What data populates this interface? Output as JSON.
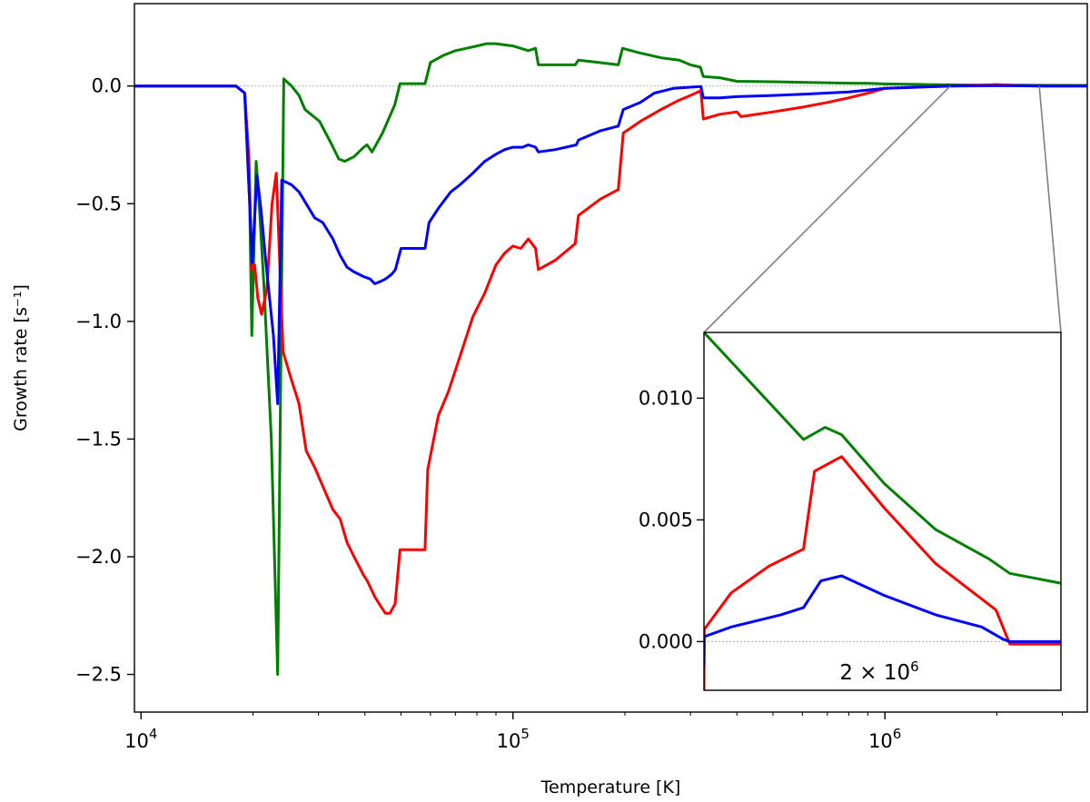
{
  "chart_data": [
    {
      "id": "main",
      "type": "line",
      "xscale": "log",
      "xlim": [
        9600,
        3500000
      ],
      "ylim": [
        -2.66,
        0.35
      ],
      "xlabel": "Temperature [K]",
      "ylabel": "Growth rate [s⁻¹]",
      "xticks": [
        {
          "value": 10000,
          "base": "10",
          "exp": "4"
        },
        {
          "value": 100000,
          "base": "10",
          "exp": "5"
        },
        {
          "value": 1000000,
          "base": "10",
          "exp": "6"
        }
      ],
      "yticks": [
        {
          "value": 0.0,
          "label": "0.0"
        },
        {
          "value": -0.5,
          "label": "−0.5"
        },
        {
          "value": -1.0,
          "label": "−1.0"
        },
        {
          "value": -1.5,
          "label": "−1.5"
        },
        {
          "value": -2.0,
          "label": "−2.0"
        },
        {
          "value": -2.5,
          "label": "−2.5"
        }
      ],
      "zero_line": true,
      "series": [
        {
          "color": "#008000",
          "points": [
            [
              9600,
              0
            ],
            [
              18000,
              0
            ],
            [
              19000,
              -0.03
            ],
            [
              19600,
              -0.5
            ],
            [
              19850,
              -1.06
            ],
            [
              20400,
              -0.32
            ],
            [
              20700,
              -0.45
            ],
            [
              21400,
              -0.85
            ],
            [
              22400,
              -1.5
            ],
            [
              23300,
              -2.5
            ],
            [
              24200,
              0.03
            ],
            [
              25400,
              0.0
            ],
            [
              26600,
              -0.04
            ],
            [
              27600,
              -0.1
            ],
            [
              30200,
              -0.15
            ],
            [
              32600,
              -0.25
            ],
            [
              34000,
              -0.31
            ],
            [
              35300,
              -0.32
            ],
            [
              37400,
              -0.3
            ],
            [
              39700,
              -0.26
            ],
            [
              40500,
              -0.25
            ],
            [
              41800,
              -0.28
            ],
            [
              44600,
              -0.2
            ],
            [
              48100,
              -0.08
            ],
            [
              49700,
              0.01
            ],
            [
              55500,
              0.01
            ],
            [
              58000,
              0.01
            ],
            [
              60000,
              0.1
            ],
            [
              65000,
              0.13
            ],
            [
              70000,
              0.15
            ],
            [
              75000,
              0.16
            ],
            [
              80000,
              0.17
            ],
            [
              85000,
              0.18
            ],
            [
              90000,
              0.18
            ],
            [
              100000,
              0.17
            ],
            [
              110000,
              0.15
            ],
            [
              115000,
              0.16
            ],
            [
              117000,
              0.09
            ],
            [
              130000,
              0.09
            ],
            [
              147000,
              0.09
            ],
            [
              150000,
              0.11
            ],
            [
              170000,
              0.1
            ],
            [
              192000,
              0.09
            ],
            [
              197000,
              0.16
            ],
            [
              220000,
              0.14
            ],
            [
              250000,
              0.12
            ],
            [
              280000,
              0.11
            ],
            [
              300000,
              0.09
            ],
            [
              319000,
              0.08
            ],
            [
              325000,
              0.04
            ],
            [
              360000,
              0.035
            ],
            [
              400000,
              0.02
            ],
            [
              500000,
              0.018
            ],
            [
              600000,
              0.016
            ],
            [
              700000,
              0.014
            ],
            [
              800000,
              0.012
            ],
            [
              900000,
              0.011
            ],
            [
              1000000,
              0.009
            ],
            [
              1300000,
              0.006
            ],
            [
              1800000,
              0.004
            ],
            [
              2300000,
              0.0035
            ],
            [
              3500000,
              0.0025
            ]
          ]
        },
        {
          "color": "#ff0000",
          "points": [
            [
              9600,
              0
            ],
            [
              18000,
              0
            ],
            [
              19000,
              -0.03
            ],
            [
              19500,
              -0.3
            ],
            [
              19850,
              -0.78
            ],
            [
              20200,
              -0.76
            ],
            [
              20600,
              -0.9
            ],
            [
              21100,
              -0.97
            ],
            [
              21800,
              -0.86
            ],
            [
              22500,
              -0.5
            ],
            [
              23100,
              -0.37
            ],
            [
              24100,
              -1.13
            ],
            [
              25400,
              -1.25
            ],
            [
              26600,
              -1.35
            ],
            [
              27800,
              -1.55
            ],
            [
              29300,
              -1.62
            ],
            [
              30800,
              -1.7
            ],
            [
              32800,
              -1.8
            ],
            [
              34300,
              -1.84
            ],
            [
              35800,
              -1.94
            ],
            [
              37400,
              -2.0
            ],
            [
              39700,
              -2.08
            ],
            [
              40500,
              -2.1
            ],
            [
              42500,
              -2.17
            ],
            [
              44100,
              -2.21
            ],
            [
              45400,
              -2.24
            ],
            [
              46700,
              -2.24
            ],
            [
              48200,
              -2.2
            ],
            [
              49700,
              -1.97
            ],
            [
              56000,
              -1.97
            ],
            [
              58000,
              -1.97
            ],
            [
              59000,
              -1.63
            ],
            [
              63000,
              -1.4
            ],
            [
              67000,
              -1.3
            ],
            [
              72000,
              -1.15
            ],
            [
              78000,
              -0.98
            ],
            [
              84000,
              -0.88
            ],
            [
              90000,
              -0.76
            ],
            [
              95000,
              -0.71
            ],
            [
              100000,
              -0.68
            ],
            [
              105000,
              -0.69
            ],
            [
              110000,
              -0.65
            ],
            [
              115000,
              -0.69
            ],
            [
              117000,
              -0.78
            ],
            [
              130000,
              -0.74
            ],
            [
              147000,
              -0.67
            ],
            [
              150000,
              -0.55
            ],
            [
              172000,
              -0.48
            ],
            [
              192000,
              -0.44
            ],
            [
              198000,
              -0.2
            ],
            [
              220000,
              -0.15
            ],
            [
              250000,
              -0.1
            ],
            [
              280000,
              -0.06
            ],
            [
              300000,
              -0.04
            ],
            [
              320000,
              -0.02
            ],
            [
              325000,
              -0.14
            ],
            [
              360000,
              -0.12
            ],
            [
              400000,
              -0.11
            ],
            [
              410000,
              -0.13
            ],
            [
              500000,
              -0.11
            ],
            [
              600000,
              -0.09
            ],
            [
              700000,
              -0.07
            ],
            [
              800000,
              -0.05
            ],
            [
              900000,
              -0.03
            ],
            [
              1000000,
              -0.01
            ],
            [
              1500000,
              0.0
            ],
            [
              2000000,
              0.006
            ],
            [
              2300000,
              0.0015
            ],
            [
              2600000,
              -0.0003
            ],
            [
              3500000,
              -0.0003
            ]
          ]
        },
        {
          "color": "#0000ff",
          "points": [
            [
              9600,
              0
            ],
            [
              18000,
              0
            ],
            [
              19000,
              -0.03
            ],
            [
              19600,
              -0.5
            ],
            [
              19900,
              -0.75
            ],
            [
              20500,
              -0.38
            ],
            [
              21000,
              -0.52
            ],
            [
              21700,
              -0.76
            ],
            [
              22700,
              -1.06
            ],
            [
              23300,
              -1.35
            ],
            [
              23900,
              -0.4
            ],
            [
              25400,
              -0.42
            ],
            [
              26600,
              -0.45
            ],
            [
              27800,
              -0.5
            ],
            [
              29300,
              -0.56
            ],
            [
              30800,
              -0.58
            ],
            [
              32800,
              -0.65
            ],
            [
              34300,
              -0.72
            ],
            [
              35800,
              -0.77
            ],
            [
              37400,
              -0.79
            ],
            [
              39700,
              -0.81
            ],
            [
              41300,
              -0.82
            ],
            [
              42500,
              -0.84
            ],
            [
              44100,
              -0.83
            ],
            [
              45400,
              -0.82
            ],
            [
              47200,
              -0.8
            ],
            [
              48300,
              -0.78
            ],
            [
              50000,
              -0.69
            ],
            [
              56000,
              -0.69
            ],
            [
              58000,
              -0.69
            ],
            [
              59500,
              -0.58
            ],
            [
              63000,
              -0.52
            ],
            [
              68000,
              -0.45
            ],
            [
              72000,
              -0.42
            ],
            [
              78000,
              -0.37
            ],
            [
              84000,
              -0.32
            ],
            [
              90000,
              -0.29
            ],
            [
              95000,
              -0.27
            ],
            [
              100000,
              -0.26
            ],
            [
              106000,
              -0.26
            ],
            [
              110000,
              -0.25
            ],
            [
              115000,
              -0.26
            ],
            [
              117000,
              -0.28
            ],
            [
              130000,
              -0.27
            ],
            [
              148000,
              -0.25
            ],
            [
              150000,
              -0.23
            ],
            [
              172000,
              -0.19
            ],
            [
              192000,
              -0.17
            ],
            [
              198000,
              -0.1
            ],
            [
              220000,
              -0.07
            ],
            [
              240000,
              -0.03
            ],
            [
              270000,
              -0.01
            ],
            [
              300000,
              -0.005
            ],
            [
              320000,
              -0.002
            ],
            [
              325000,
              -0.05
            ],
            [
              360000,
              -0.05
            ],
            [
              400000,
              -0.045
            ],
            [
              500000,
              -0.04
            ],
            [
              600000,
              -0.035
            ],
            [
              800000,
              -0.025
            ],
            [
              1000000,
              -0.01
            ],
            [
              1500000,
              0.0
            ],
            [
              2000000,
              0.001
            ],
            [
              2500000,
              0.0005
            ],
            [
              2600000,
              0.0
            ],
            [
              3500000,
              0.0
            ]
          ]
        }
      ]
    },
    {
      "id": "inset",
      "type": "line",
      "xscale": "log",
      "xlim": [
        1500000,
        3500000
      ],
      "ylim": [
        -0.002,
        0.0127
      ],
      "xlabel": "",
      "ylabel": "",
      "yticks": [
        {
          "value": 0.0,
          "label": "0.000"
        },
        {
          "value": 0.005,
          "label": "0.005"
        },
        {
          "value": 0.01,
          "label": "0.010"
        }
      ],
      "annotation": {
        "base": "2 × 10",
        "exp": "6"
      },
      "zero_line": true,
      "series": [
        {
          "color": "#008000",
          "points": [
            [
              1500000,
              0.0127
            ],
            [
              1900000,
              0.0083
            ],
            [
              2000000,
              0.0088
            ],
            [
              2080000,
              0.0085
            ],
            [
              2300000,
              0.0065
            ],
            [
              2600000,
              0.0046
            ],
            [
              2950000,
              0.0034
            ],
            [
              3100000,
              0.0028
            ],
            [
              3500000,
              0.0024
            ]
          ]
        },
        {
          "color": "#ff0000",
          "points": [
            [
              1500000,
              -0.002
            ],
            [
              1501000,
              0.0005
            ],
            [
              1600000,
              0.002
            ],
            [
              1750000,
              0.0031
            ],
            [
              1900000,
              0.0038
            ],
            [
              1950000,
              0.007
            ],
            [
              2080000,
              0.0076
            ],
            [
              2300000,
              0.0055
            ],
            [
              2600000,
              0.0032
            ],
            [
              3000000,
              0.0013
            ],
            [
              3100000,
              -0.0001
            ],
            [
              3500000,
              -0.0001
            ]
          ]
        },
        {
          "color": "#0000ff",
          "points": [
            [
              1500000,
              -0.001
            ],
            [
              1501000,
              0.0002
            ],
            [
              1600000,
              0.0006
            ],
            [
              1800000,
              0.0011
            ],
            [
              1900000,
              0.0014
            ],
            [
              1980000,
              0.0025
            ],
            [
              2080000,
              0.0027
            ],
            [
              2300000,
              0.0019
            ],
            [
              2600000,
              0.0011
            ],
            [
              2900000,
              0.0006
            ],
            [
              3050000,
              0.0001
            ],
            [
              3100000,
              0.0
            ],
            [
              3500000,
              0.0
            ]
          ]
        }
      ]
    }
  ]
}
